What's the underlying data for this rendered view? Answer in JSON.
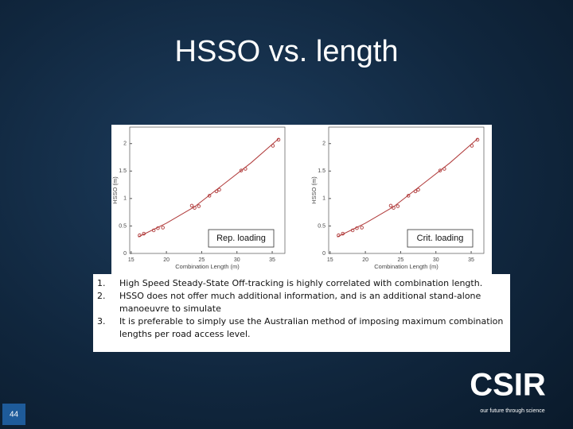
{
  "title": "HSSO vs. length",
  "chart_data": [
    {
      "type": "scatter",
      "annotation": "Rep. loading",
      "x_label": "Combination Length (m)",
      "y_label": "HSSO (m)",
      "xlim": [
        14.8,
        36.8
      ],
      "ylim": [
        0,
        2.3
      ],
      "xticks": [
        15,
        20,
        25,
        30,
        35
      ],
      "yticks": [
        0,
        0.5,
        1,
        1.5,
        2
      ],
      "color": "#b03a3a",
      "x": [
        16.2,
        16.8,
        18.2,
        18.8,
        19.5,
        23.6,
        24.0,
        24.6,
        26.1,
        27.1,
        27.5,
        30.6,
        31.2,
        35.1,
        35.9
      ],
      "values": [
        0.33,
        0.36,
        0.42,
        0.46,
        0.47,
        0.87,
        0.83,
        0.86,
        1.05,
        1.13,
        1.16,
        1.51,
        1.54,
        1.96,
        2.07
      ],
      "fit": {
        "x": [
          16,
          20,
          24,
          28,
          32,
          36
        ],
        "values": [
          0.3,
          0.55,
          0.85,
          1.25,
          1.65,
          2.1
        ]
      }
    },
    {
      "type": "scatter",
      "annotation": "Crit. loading",
      "x_label": "Combination Length (m)",
      "y_label": "HSSO (m)",
      "xlim": [
        14.8,
        36.8
      ],
      "ylim": [
        0,
        2.3
      ],
      "xticks": [
        15,
        20,
        25,
        30,
        35
      ],
      "yticks": [
        0,
        0.5,
        1,
        1.5,
        2
      ],
      "color": "#b03a3a",
      "x": [
        16.2,
        16.8,
        18.2,
        18.8,
        19.5,
        23.6,
        24.0,
        24.6,
        26.1,
        27.1,
        27.5,
        30.6,
        31.2,
        35.1,
        35.9
      ],
      "values": [
        0.33,
        0.36,
        0.42,
        0.46,
        0.47,
        0.87,
        0.83,
        0.86,
        1.05,
        1.13,
        1.16,
        1.51,
        1.54,
        1.96,
        2.07
      ],
      "fit": {
        "x": [
          16,
          20,
          24,
          28,
          32,
          36
        ],
        "values": [
          0.3,
          0.55,
          0.85,
          1.25,
          1.65,
          2.1
        ]
      }
    }
  ],
  "list": [
    {
      "marker": "1.",
      "text": "High Speed Steady-State Off-tracking is highly correlated with combination length."
    },
    {
      "marker": "2.",
      "text": "HSSO does not offer much additional information, and is an additional stand-alone manoeuvre to simulate"
    },
    {
      "marker": "3.",
      "text": "It is preferable to simply use the Australian method of imposing maximum combination lengths per road access level."
    }
  ],
  "page_number": "44",
  "logo": {
    "name": "CSIR",
    "tagline": "our future through science"
  }
}
